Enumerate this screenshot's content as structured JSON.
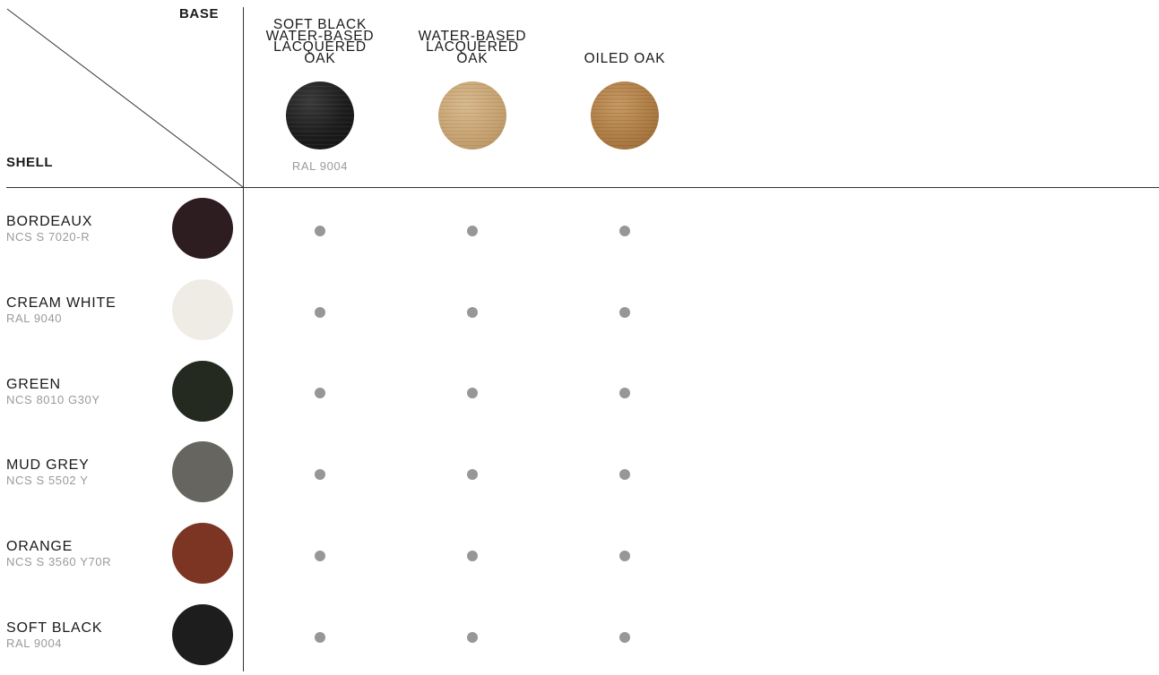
{
  "header": {
    "base_label": "BASE",
    "shell_label": "SHELL"
  },
  "bases": [
    {
      "title_lines": [
        "SOFT BLACK",
        "WATER-BASED",
        "LACQUERED",
        "OAK"
      ],
      "code": "RAL 9004",
      "swatch": "soft-black-oak",
      "color": "#1c1c1c"
    },
    {
      "title_lines": [
        "WATER-BASED",
        "LACQUERED",
        "OAK"
      ],
      "code": "",
      "swatch": "water-based-lacquered-oak",
      "color": "#c6a272"
    },
    {
      "title_lines": [
        "OILED OAK"
      ],
      "code": "",
      "swatch": "oiled-oak",
      "color": "#ad7c45"
    }
  ],
  "shells": [
    {
      "name": "BORDEAUX",
      "code": "NCS S 7020-R",
      "color": "#2d1c20",
      "available": [
        true,
        true,
        true
      ]
    },
    {
      "name": "CREAM WHITE",
      "code": "RAL 9040",
      "color": "#efece5",
      "available": [
        true,
        true,
        true
      ]
    },
    {
      "name": "GREEN",
      "code": "NCS 8010 G30Y",
      "color": "#252a20",
      "available": [
        true,
        true,
        true
      ]
    },
    {
      "name": "MUD GREY",
      "code": "NCS S 5502 Y",
      "color": "#676560",
      "available": [
        true,
        true,
        true
      ]
    },
    {
      "name": "ORANGE",
      "code": "NCS S 3560 Y70R",
      "color": "#7b3522",
      "available": [
        true,
        true,
        true
      ]
    },
    {
      "name": "SOFT BLACK",
      "code": "RAL 9004",
      "color": "#1d1d1d",
      "available": [
        true,
        true,
        true
      ]
    }
  ],
  "colors": {
    "line": "#333333",
    "dot": "#979797",
    "code_text": "#9a9a9a"
  }
}
